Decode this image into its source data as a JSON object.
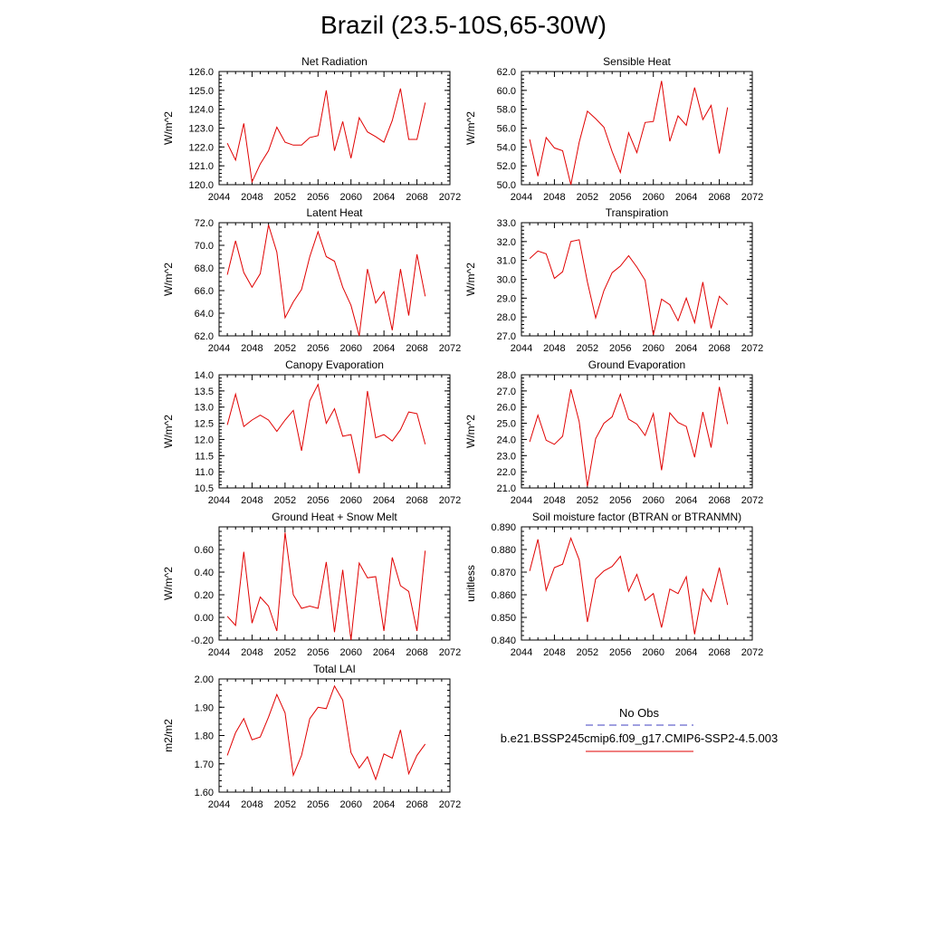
{
  "title": "Brazil (23.5-10S,65-30W)",
  "legend": {
    "entries": [
      {
        "label": "No Obs",
        "color": "#4040c0",
        "dash": true
      },
      {
        "label": "b.e21.BSSP245cmip6.f09_g17.CMIP6-SSP2-4.5.003",
        "color": "#e00000",
        "dash": false
      }
    ]
  },
  "chart_data": [
    {
      "type": "line",
      "title": "Net Radiation",
      "ylabel": "W/m^2",
      "xlim": [
        2044,
        2072
      ],
      "ylim": [
        120.0,
        126.0
      ],
      "xticks": [
        "2044",
        "2048",
        "2052",
        "2056",
        "2060",
        "2064",
        "2068",
        "2072"
      ],
      "yticks": [
        "120.0",
        "121.0",
        "122.0",
        "123.0",
        "124.0",
        "125.0",
        "126.0"
      ],
      "color": "#e00000",
      "x": [
        2045,
        2046,
        2047,
        2048,
        2049,
        2050,
        2051,
        2052,
        2053,
        2054,
        2055,
        2056,
        2057,
        2058,
        2059,
        2060,
        2061,
        2062,
        2063,
        2064,
        2065,
        2066,
        2067,
        2068,
        2069
      ],
      "y": [
        122.2,
        121.3,
        123.25,
        120.15,
        121.1,
        121.8,
        123.05,
        122.25,
        122.1,
        122.1,
        122.5,
        122.6,
        125.0,
        121.8,
        123.35,
        121.4,
        123.55,
        122.8,
        122.55,
        122.25,
        123.4,
        125.1,
        122.4,
        122.4,
        124.35
      ]
    },
    {
      "type": "line",
      "title": "Sensible Heat",
      "ylabel": "W/m^2",
      "xlim": [
        2044,
        2072
      ],
      "ylim": [
        50.0,
        62.0
      ],
      "xticks": [
        "2044",
        "2048",
        "2052",
        "2056",
        "2060",
        "2064",
        "2068",
        "2072"
      ],
      "yticks": [
        "50.0",
        "52.0",
        "54.0",
        "56.0",
        "58.0",
        "60.0",
        "62.0"
      ],
      "color": "#e00000",
      "x": [
        2045,
        2046,
        2047,
        2048,
        2049,
        2050,
        2051,
        2052,
        2053,
        2054,
        2055,
        2056,
        2057,
        2058,
        2059,
        2060,
        2061,
        2062,
        2063,
        2064,
        2065,
        2066,
        2067,
        2068,
        2069
      ],
      "y": [
        54.8,
        50.9,
        55.0,
        53.9,
        53.6,
        50.0,
        54.5,
        57.8,
        57.0,
        56.1,
        53.5,
        51.3,
        55.5,
        53.4,
        56.6,
        56.7,
        61.0,
        54.6,
        57.3,
        56.3,
        60.3,
        56.9,
        58.4,
        53.3,
        58.2
      ]
    },
    {
      "type": "line",
      "title": "Latent Heat",
      "ylabel": "W/m^2",
      "xlim": [
        2044,
        2072
      ],
      "ylim": [
        62.0,
        72.0
      ],
      "xticks": [
        "2044",
        "2048",
        "2052",
        "2056",
        "2060",
        "2064",
        "2068",
        "2072"
      ],
      "yticks": [
        "62.0",
        "64.0",
        "66.0",
        "68.0",
        "70.0",
        "72.0"
      ],
      "color": "#e00000",
      "x": [
        2045,
        2046,
        2047,
        2048,
        2049,
        2050,
        2051,
        2052,
        2053,
        2054,
        2055,
        2056,
        2057,
        2058,
        2059,
        2060,
        2061,
        2062,
        2063,
        2064,
        2065,
        2066,
        2067,
        2068,
        2069
      ],
      "y": [
        67.4,
        70.4,
        67.6,
        66.3,
        67.5,
        71.8,
        69.4,
        63.6,
        65.0,
        66.1,
        69.0,
        71.2,
        69.0,
        68.6,
        66.3,
        64.7,
        62.0,
        67.9,
        64.9,
        65.9,
        62.5,
        67.9,
        63.8,
        69.2,
        65.5
      ]
    },
    {
      "type": "line",
      "title": "Transpiration",
      "ylabel": "W/m^2",
      "xlim": [
        2044,
        2072
      ],
      "ylim": [
        27.0,
        33.0
      ],
      "xticks": [
        "2044",
        "2048",
        "2052",
        "2056",
        "2060",
        "2064",
        "2068",
        "2072"
      ],
      "yticks": [
        "27.0",
        "28.0",
        "29.0",
        "30.0",
        "31.0",
        "32.0",
        "33.0"
      ],
      "color": "#e00000",
      "x": [
        2045,
        2046,
        2047,
        2048,
        2049,
        2050,
        2051,
        2052,
        2053,
        2054,
        2055,
        2056,
        2057,
        2058,
        2059,
        2060,
        2061,
        2062,
        2063,
        2064,
        2065,
        2066,
        2067,
        2068,
        2069
      ],
      "y": [
        31.1,
        31.5,
        31.35,
        30.05,
        30.4,
        32.0,
        32.1,
        29.85,
        27.95,
        29.4,
        30.35,
        30.7,
        31.25,
        30.65,
        29.95,
        27.05,
        28.95,
        28.65,
        27.8,
        29.0,
        27.7,
        29.85,
        27.4,
        29.1,
        28.65
      ]
    },
    {
      "type": "line",
      "title": "Canopy Evaporation",
      "ylabel": "W/m^2",
      "xlim": [
        2044,
        2072
      ],
      "ylim": [
        10.5,
        14.0
      ],
      "xticks": [
        "2044",
        "2048",
        "2052",
        "2056",
        "2060",
        "2064",
        "2068",
        "2072"
      ],
      "yticks": [
        "10.5",
        "11.0",
        "11.5",
        "12.0",
        "12.5",
        "13.0",
        "13.5",
        "14.0"
      ],
      "color": "#e00000",
      "x": [
        2045,
        2046,
        2047,
        2048,
        2049,
        2050,
        2051,
        2052,
        2053,
        2054,
        2055,
        2056,
        2057,
        2058,
        2059,
        2060,
        2061,
        2062,
        2063,
        2064,
        2065,
        2066,
        2067,
        2068,
        2069
      ],
      "y": [
        12.45,
        13.4,
        12.4,
        12.6,
        12.75,
        12.6,
        12.25,
        12.6,
        12.9,
        11.65,
        13.2,
        13.7,
        12.5,
        12.95,
        12.1,
        12.15,
        10.95,
        13.5,
        12.05,
        12.15,
        11.95,
        12.3,
        12.85,
        12.8,
        11.85
      ]
    },
    {
      "type": "line",
      "title": "Ground Evaporation",
      "ylabel": "W/m^2",
      "xlim": [
        2044,
        2072
      ],
      "ylim": [
        21.0,
        28.0
      ],
      "xticks": [
        "2044",
        "2048",
        "2052",
        "2056",
        "2060",
        "2064",
        "2068",
        "2072"
      ],
      "yticks": [
        "21.0",
        "22.0",
        "23.0",
        "24.0",
        "25.0",
        "26.0",
        "27.0",
        "28.0"
      ],
      "color": "#e00000",
      "x": [
        2045,
        2046,
        2047,
        2048,
        2049,
        2050,
        2051,
        2052,
        2053,
        2054,
        2055,
        2056,
        2057,
        2058,
        2059,
        2060,
        2061,
        2062,
        2063,
        2064,
        2065,
        2066,
        2067,
        2068,
        2069
      ],
      "y": [
        23.85,
        25.5,
        23.95,
        23.7,
        24.2,
        27.1,
        25.1,
        21.1,
        24.05,
        25.0,
        25.4,
        26.8,
        25.25,
        24.95,
        24.25,
        25.6,
        22.1,
        25.65,
        25.05,
        24.8,
        22.9,
        25.7,
        23.5,
        27.25,
        24.95
      ]
    },
    {
      "type": "line",
      "title": "Ground Heat + Snow Melt",
      "ylabel": "W/m^2",
      "xlim": [
        2044,
        2072
      ],
      "ylim": [
        -0.2,
        0.8
      ],
      "xticks": [
        "2044",
        "2048",
        "2052",
        "2056",
        "2060",
        "2064",
        "2068",
        "2072"
      ],
      "yticks": [
        "-0.20",
        "0.00",
        "0.20",
        "0.40",
        "0.60"
      ],
      "ytick_values": [
        -0.2,
        0.0,
        0.2,
        0.4,
        0.6
      ],
      "color": "#e00000",
      "x": [
        2045,
        2046,
        2047,
        2048,
        2049,
        2050,
        2051,
        2052,
        2053,
        2054,
        2055,
        2056,
        2057,
        2058,
        2059,
        2060,
        2061,
        2062,
        2063,
        2064,
        2065,
        2066,
        2067,
        2068,
        2069
      ],
      "y": [
        0.01,
        -0.07,
        0.58,
        -0.05,
        0.18,
        0.1,
        -0.12,
        0.75,
        0.2,
        0.08,
        0.1,
        0.08,
        0.49,
        -0.13,
        0.42,
        -0.2,
        0.48,
        0.35,
        0.36,
        -0.12,
        0.53,
        0.28,
        0.23,
        -0.12,
        0.59
      ]
    },
    {
      "type": "line",
      "title": "Soil moisture factor (BTRAN or BTRANMN)",
      "ylabel": "unitless",
      "xlim": [
        2044,
        2072
      ],
      "ylim": [
        0.84,
        0.89
      ],
      "xticks": [
        "2044",
        "2048",
        "2052",
        "2056",
        "2060",
        "2064",
        "2068",
        "2072"
      ],
      "yticks": [
        "0.840",
        "0.850",
        "0.860",
        "0.870",
        "0.880",
        "0.890"
      ],
      "color": "#e00000",
      "x": [
        2045,
        2046,
        2047,
        2048,
        2049,
        2050,
        2051,
        2052,
        2053,
        2054,
        2055,
        2056,
        2057,
        2058,
        2059,
        2060,
        2061,
        2062,
        2063,
        2064,
        2065,
        2066,
        2067,
        2068,
        2069
      ],
      "y": [
        0.8705,
        0.8845,
        0.862,
        0.872,
        0.8735,
        0.885,
        0.8755,
        0.848,
        0.867,
        0.8705,
        0.8725,
        0.877,
        0.8615,
        0.869,
        0.8575,
        0.8605,
        0.8455,
        0.8625,
        0.8605,
        0.868,
        0.8425,
        0.8625,
        0.857,
        0.872,
        0.8555
      ]
    },
    {
      "type": "line",
      "title": "Total LAI",
      "ylabel": "m2/m2",
      "xlim": [
        2044,
        2072
      ],
      "ylim": [
        1.6,
        2.0
      ],
      "xticks": [
        "2044",
        "2048",
        "2052",
        "2056",
        "2060",
        "2064",
        "2068",
        "2072"
      ],
      "yticks": [
        "1.60",
        "1.70",
        "1.80",
        "1.90",
        "2.00"
      ],
      "color": "#e00000",
      "x": [
        2045,
        2046,
        2047,
        2048,
        2049,
        2050,
        2051,
        2052,
        2053,
        2054,
        2055,
        2056,
        2057,
        2058,
        2059,
        2060,
        2061,
        2062,
        2063,
        2064,
        2065,
        2066,
        2067,
        2068,
        2069
      ],
      "y": [
        1.73,
        1.81,
        1.86,
        1.785,
        1.795,
        1.865,
        1.945,
        1.88,
        1.66,
        1.73,
        1.86,
        1.9,
        1.895,
        1.975,
        1.925,
        1.74,
        1.685,
        1.725,
        1.645,
        1.735,
        1.72,
        1.82,
        1.665,
        1.73,
        1.77
      ]
    }
  ]
}
